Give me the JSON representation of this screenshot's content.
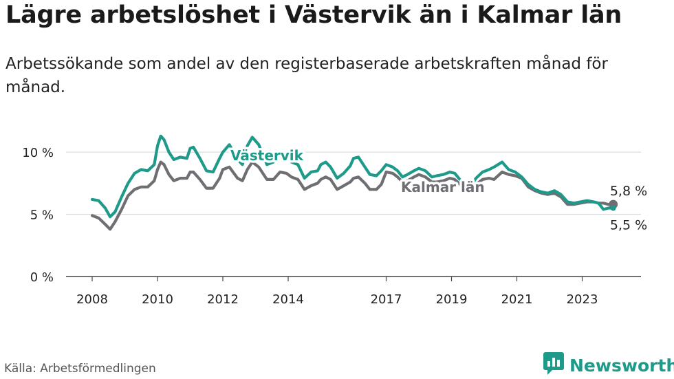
{
  "title": "Lägre arbetslöshet i Västervik än i Kalmar län",
  "subtitle": "Arbetssökande som andel av den registerbaserade arbetskraften månad för månad.",
  "source": "Källa: Arbetsförmedlingen",
  "brand": {
    "name": "Newsworthy",
    "icon": "newsworthy-logo-icon",
    "color": "#1e9a8a"
  },
  "chart_data": {
    "type": "line",
    "title": "Lägre arbetslöshet i Västervik än i Kalmar län",
    "xlabel": "",
    "ylabel": "",
    "xlim": [
      2007.2,
      2024.8
    ],
    "ylim": [
      0,
      12
    ],
    "grid": true,
    "y_ticks": [
      {
        "value": 0,
        "label": "0 %"
      },
      {
        "value": 5,
        "label": "5 %"
      },
      {
        "value": 10,
        "label": "10 %"
      }
    ],
    "x_ticks": [
      {
        "value": 2008,
        "label": "2008"
      },
      {
        "value": 2010,
        "label": "2010"
      },
      {
        "value": 2012,
        "label": "2012"
      },
      {
        "value": 2014,
        "label": "2014"
      },
      {
        "value": 2017,
        "label": "2017"
      },
      {
        "value": 2019,
        "label": "2019"
      },
      {
        "value": 2021,
        "label": "2021"
      },
      {
        "value": 2023,
        "label": "2023"
      }
    ],
    "series": [
      {
        "name": "Västervik",
        "color": "#1e9a8a",
        "end_label": "5,5 %",
        "points": [
          [
            2008.0,
            6.2
          ],
          [
            2008.2,
            6.1
          ],
          [
            2008.4,
            5.5
          ],
          [
            2008.55,
            4.8
          ],
          [
            2008.7,
            5.2
          ],
          [
            2008.9,
            6.4
          ],
          [
            2009.1,
            7.5
          ],
          [
            2009.3,
            8.3
          ],
          [
            2009.5,
            8.6
          ],
          [
            2009.7,
            8.5
          ],
          [
            2009.9,
            9.0
          ],
          [
            2010.0,
            10.5
          ],
          [
            2010.1,
            11.3
          ],
          [
            2010.2,
            11.0
          ],
          [
            2010.35,
            10.0
          ],
          [
            2010.5,
            9.4
          ],
          [
            2010.7,
            9.6
          ],
          [
            2010.9,
            9.5
          ],
          [
            2011.0,
            10.3
          ],
          [
            2011.1,
            10.4
          ],
          [
            2011.3,
            9.5
          ],
          [
            2011.5,
            8.5
          ],
          [
            2011.7,
            8.4
          ],
          [
            2011.9,
            9.5
          ],
          [
            2012.0,
            10.0
          ],
          [
            2012.2,
            10.6
          ],
          [
            2012.45,
            9.4
          ],
          [
            2012.6,
            9.0
          ],
          [
            2012.75,
            10.5
          ],
          [
            2012.9,
            11.2
          ],
          [
            2013.1,
            10.6
          ],
          [
            2013.35,
            9.0
          ],
          [
            2013.55,
            9.2
          ],
          [
            2013.75,
            10.0
          ],
          [
            2013.95,
            9.9
          ],
          [
            2014.1,
            9.2
          ],
          [
            2014.3,
            9.0
          ],
          [
            2014.5,
            7.9
          ],
          [
            2014.7,
            8.4
          ],
          [
            2014.9,
            8.5
          ],
          [
            2015.0,
            9.0
          ],
          [
            2015.15,
            9.2
          ],
          [
            2015.3,
            8.8
          ],
          [
            2015.5,
            7.9
          ],
          [
            2015.7,
            8.3
          ],
          [
            2015.9,
            8.9
          ],
          [
            2016.0,
            9.5
          ],
          [
            2016.15,
            9.6
          ],
          [
            2016.35,
            8.8
          ],
          [
            2016.5,
            8.2
          ],
          [
            2016.7,
            8.1
          ],
          [
            2016.85,
            8.5
          ],
          [
            2017.0,
            9.0
          ],
          [
            2017.2,
            8.8
          ],
          [
            2017.35,
            8.5
          ],
          [
            2017.5,
            8.0
          ],
          [
            2017.65,
            8.2
          ],
          [
            2017.85,
            8.5
          ],
          [
            2018.0,
            8.7
          ],
          [
            2018.2,
            8.5
          ],
          [
            2018.4,
            8.0
          ],
          [
            2018.55,
            8.1
          ],
          [
            2018.75,
            8.2
          ],
          [
            2018.95,
            8.4
          ],
          [
            2019.1,
            8.3
          ],
          [
            2019.35,
            7.5
          ],
          [
            2019.55,
            7.1
          ],
          [
            2019.75,
            7.9
          ],
          [
            2019.95,
            8.4
          ],
          [
            2020.15,
            8.6
          ],
          [
            2020.3,
            8.8
          ],
          [
            2020.55,
            9.2
          ],
          [
            2020.75,
            8.6
          ],
          [
            2020.95,
            8.4
          ],
          [
            2021.15,
            8.0
          ],
          [
            2021.35,
            7.4
          ],
          [
            2021.55,
            7.0
          ],
          [
            2021.75,
            6.8
          ],
          [
            2021.95,
            6.7
          ],
          [
            2022.15,
            6.9
          ],
          [
            2022.35,
            6.6
          ],
          [
            2022.55,
            6.0
          ],
          [
            2022.75,
            5.9
          ],
          [
            2022.95,
            6.0
          ],
          [
            2023.15,
            6.1
          ],
          [
            2023.35,
            6.0
          ],
          [
            2023.5,
            5.9
          ],
          [
            2023.65,
            5.4
          ],
          [
            2023.8,
            5.5
          ],
          [
            2023.95,
            5.5
          ]
        ]
      },
      {
        "name": "Kalmar län",
        "color": "#6e6e73",
        "end_label": "5,8 %",
        "points": [
          [
            2008.0,
            4.9
          ],
          [
            2008.2,
            4.7
          ],
          [
            2008.4,
            4.2
          ],
          [
            2008.55,
            3.8
          ],
          [
            2008.7,
            4.4
          ],
          [
            2008.9,
            5.4
          ],
          [
            2009.1,
            6.5
          ],
          [
            2009.3,
            7.0
          ],
          [
            2009.5,
            7.2
          ],
          [
            2009.7,
            7.2
          ],
          [
            2009.9,
            7.7
          ],
          [
            2010.0,
            8.6
          ],
          [
            2010.1,
            9.2
          ],
          [
            2010.2,
            9.0
          ],
          [
            2010.35,
            8.2
          ],
          [
            2010.5,
            7.7
          ],
          [
            2010.7,
            7.9
          ],
          [
            2010.9,
            7.9
          ],
          [
            2011.0,
            8.4
          ],
          [
            2011.1,
            8.4
          ],
          [
            2011.3,
            7.8
          ],
          [
            2011.5,
            7.1
          ],
          [
            2011.7,
            7.1
          ],
          [
            2011.9,
            7.9
          ],
          [
            2012.0,
            8.6
          ],
          [
            2012.2,
            8.8
          ],
          [
            2012.45,
            7.9
          ],
          [
            2012.6,
            7.7
          ],
          [
            2012.75,
            8.6
          ],
          [
            2012.9,
            9.2
          ],
          [
            2013.1,
            8.8
          ],
          [
            2013.35,
            7.8
          ],
          [
            2013.55,
            7.8
          ],
          [
            2013.75,
            8.4
          ],
          [
            2013.95,
            8.3
          ],
          [
            2014.1,
            8.0
          ],
          [
            2014.3,
            7.8
          ],
          [
            2014.5,
            7.0
          ],
          [
            2014.7,
            7.3
          ],
          [
            2014.9,
            7.5
          ],
          [
            2015.0,
            7.8
          ],
          [
            2015.15,
            8.0
          ],
          [
            2015.3,
            7.8
          ],
          [
            2015.5,
            7.0
          ],
          [
            2015.7,
            7.3
          ],
          [
            2015.9,
            7.6
          ],
          [
            2016.0,
            7.9
          ],
          [
            2016.15,
            8.0
          ],
          [
            2016.35,
            7.5
          ],
          [
            2016.5,
            7.0
          ],
          [
            2016.7,
            7.0
          ],
          [
            2016.85,
            7.4
          ],
          [
            2017.0,
            8.4
          ],
          [
            2017.2,
            8.3
          ],
          [
            2017.35,
            8.0
          ],
          [
            2017.5,
            7.6
          ],
          [
            2017.65,
            7.7
          ],
          [
            2017.85,
            8.0
          ],
          [
            2018.0,
            8.2
          ],
          [
            2018.2,
            8.0
          ],
          [
            2018.4,
            7.6
          ],
          [
            2018.55,
            7.6
          ],
          [
            2018.75,
            7.7
          ],
          [
            2018.95,
            7.9
          ],
          [
            2019.1,
            7.8
          ],
          [
            2019.35,
            7.2
          ],
          [
            2019.55,
            6.8
          ],
          [
            2019.75,
            7.4
          ],
          [
            2019.95,
            7.8
          ],
          [
            2020.15,
            7.9
          ],
          [
            2020.3,
            7.8
          ],
          [
            2020.55,
            8.4
          ],
          [
            2020.75,
            8.2
          ],
          [
            2020.95,
            8.1
          ],
          [
            2021.15,
            7.9
          ],
          [
            2021.35,
            7.2
          ],
          [
            2021.55,
            6.9
          ],
          [
            2021.75,
            6.7
          ],
          [
            2021.95,
            6.6
          ],
          [
            2022.15,
            6.7
          ],
          [
            2022.35,
            6.4
          ],
          [
            2022.55,
            5.8
          ],
          [
            2022.75,
            5.8
          ],
          [
            2022.95,
            5.9
          ],
          [
            2023.15,
            6.0
          ],
          [
            2023.35,
            6.0
          ],
          [
            2023.5,
            5.9
          ],
          [
            2023.65,
            5.9
          ],
          [
            2023.8,
            5.8
          ],
          [
            2023.95,
            5.8
          ]
        ]
      }
    ]
  }
}
